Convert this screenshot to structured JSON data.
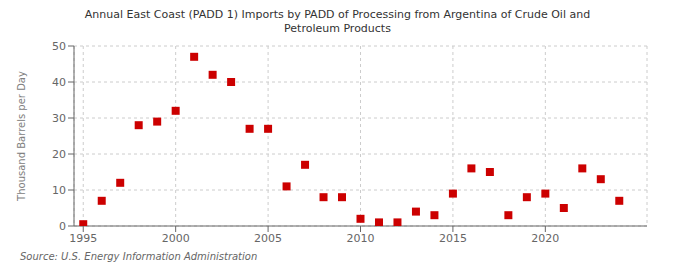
{
  "chart_data": {
    "type": "scatter",
    "title": "Annual East Coast (PADD 1) Imports by PADD of Processing from Argentina of Crude Oil and\nPetroleum Products",
    "y_label": "Thousand Barrels per Day",
    "annotations": [
      "Source: U.S. Energy Information Administration"
    ],
    "x": [
      1995,
      1996,
      1997,
      1998,
      1999,
      2000,
      2001,
      2002,
      2003,
      2004,
      2005,
      2006,
      2007,
      2008,
      2009,
      2010,
      2011,
      2012,
      2013,
      2014,
      2015,
      2016,
      2017,
      2018,
      2019,
      2020,
      2021,
      2022,
      2023,
      2024
    ],
    "values": [
      0.5,
      7,
      12,
      28,
      29,
      32,
      47,
      42,
      40,
      27,
      27,
      11,
      17,
      8,
      8,
      2,
      1,
      1,
      4,
      3,
      9,
      16,
      15,
      3,
      8,
      9,
      5,
      16,
      13,
      7
    ],
    "color": "#cc0000",
    "marker": "square",
    "xlim": [
      1994.5,
      2025.5
    ],
    "ylim": [
      0,
      50
    ],
    "yticks": [
      0,
      10,
      20,
      30,
      40,
      50
    ],
    "xticks": [
      1995,
      2000,
      2005,
      2010,
      2015,
      2020
    ],
    "grid": true
  }
}
